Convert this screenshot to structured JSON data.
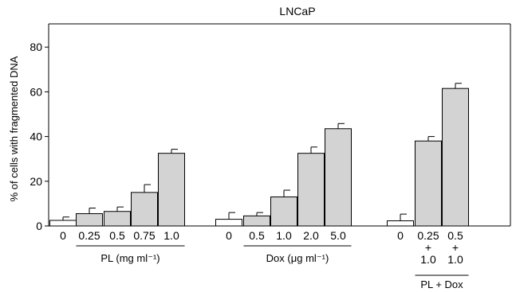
{
  "chart_data": {
    "type": "bar",
    "title": "LNCaP",
    "ylabel": "% of cells with fragmented DNA",
    "ylim": [
      0,
      90
    ],
    "yticks": [
      0,
      20,
      40,
      60,
      80
    ],
    "grid": false,
    "colors": {
      "control": "#ffffff",
      "treated": "#d3d3d3",
      "outline": "#000000"
    },
    "bars": [
      {
        "label": "0",
        "value": 2.5,
        "error": 1.5,
        "style": "control"
      },
      {
        "label": "0.25",
        "value": 5.5,
        "error": 2.5,
        "style": "treated"
      },
      {
        "label": "0.5",
        "value": 6.5,
        "error": 2.0,
        "style": "treated"
      },
      {
        "label": "0.75",
        "value": 15.0,
        "error": 3.5,
        "style": "treated"
      },
      {
        "label": "1.0",
        "value": 32.5,
        "error": 1.8,
        "style": "treated"
      },
      {
        "label": "0",
        "value": 3.0,
        "error": 3.0,
        "style": "control"
      },
      {
        "label": "0.5",
        "value": 4.5,
        "error": 1.5,
        "style": "treated"
      },
      {
        "label": "1.0",
        "value": 13.0,
        "error": 3.0,
        "style": "treated"
      },
      {
        "label": "2.0",
        "value": 32.5,
        "error": 2.8,
        "style": "treated"
      },
      {
        "label": "5.0",
        "value": 43.5,
        "error": 2.3,
        "style": "treated"
      },
      {
        "label": "0",
        "value": 2.3,
        "error": 3.0,
        "style": "control"
      },
      {
        "label": "0.25\n+\n1.0",
        "value": 38.0,
        "error": 2.0,
        "style": "treated"
      },
      {
        "label": "0.5\n+\n1.0",
        "value": 61.5,
        "error": 2.3,
        "style": "treated"
      }
    ],
    "groups": [
      {
        "label": "PL (mg ml⁻¹)",
        "from": 1,
        "to": 4
      },
      {
        "label": "Dox (μg ml⁻¹)",
        "from": 6,
        "to": 9
      },
      {
        "label": "PL + Dox",
        "from": 11,
        "to": 12
      }
    ]
  }
}
